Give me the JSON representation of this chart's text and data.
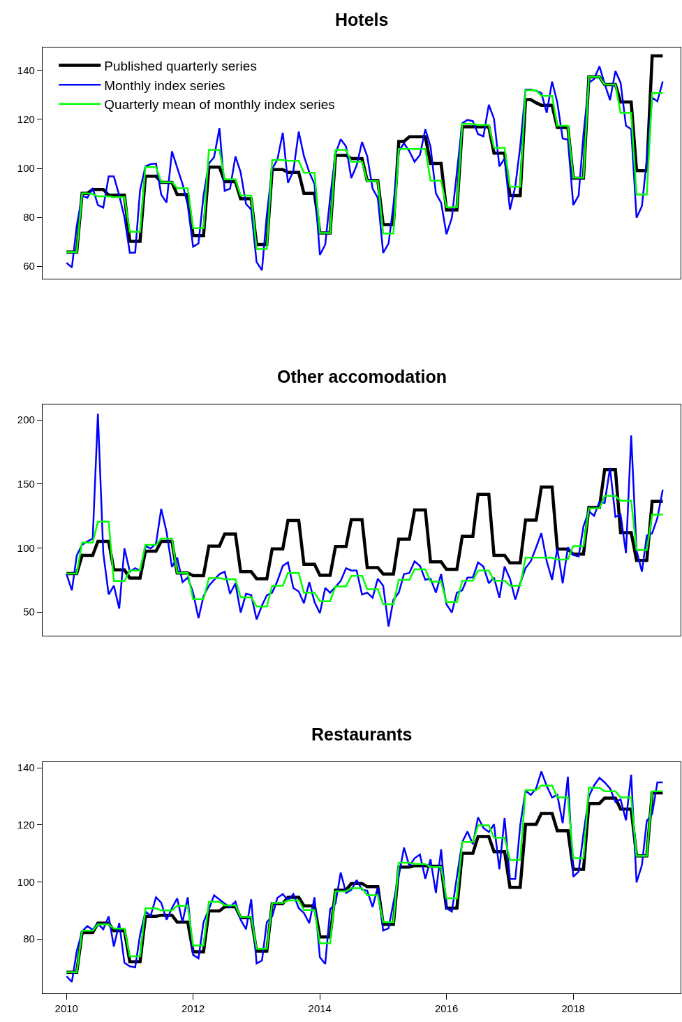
{
  "chart_data": [
    {
      "type": "line",
      "title": "Hotels",
      "legend": "top left",
      "tick_labels": "y",
      "x": [
        "2010-01",
        "2010-02",
        "2010-03",
        "2010-04",
        "2010-05",
        "2010-06",
        "2010-07",
        "2010-08",
        "2010-09",
        "2010-10",
        "2010-11",
        "2010-12",
        "2011-01",
        "2011-02",
        "2011-03",
        "2011-04",
        "2011-05",
        "2011-06",
        "2011-07",
        "2011-08",
        "2011-09",
        "2011-10",
        "2011-11",
        "2011-12",
        "2012-01",
        "2012-02",
        "2012-03",
        "2012-04",
        "2012-05",
        "2012-06",
        "2012-07",
        "2012-08",
        "2012-09",
        "2012-10",
        "2012-11",
        "2012-12",
        "2013-01",
        "2013-02",
        "2013-03",
        "2013-04",
        "2013-05",
        "2013-06",
        "2013-07",
        "2013-08",
        "2013-09",
        "2013-10",
        "2013-11",
        "2013-12",
        "2014-01",
        "2014-02",
        "2014-03",
        "2014-04",
        "2014-05",
        "2014-06",
        "2014-07",
        "2014-08",
        "2014-09",
        "2014-10",
        "2014-11",
        "2014-12",
        "2015-01",
        "2015-02",
        "2015-03",
        "2015-04",
        "2015-05",
        "2015-06",
        "2015-07",
        "2015-08",
        "2015-09",
        "2015-10",
        "2015-11",
        "2015-12",
        "2016-01",
        "2016-02",
        "2016-03",
        "2016-04",
        "2016-05",
        "2016-06",
        "2016-07",
        "2016-08",
        "2016-09",
        "2016-10",
        "2016-11",
        "2016-12",
        "2017-01",
        "2017-02",
        "2017-03",
        "2017-04",
        "2017-05",
        "2017-06",
        "2017-07",
        "2017-08",
        "2017-09",
        "2017-10",
        "2017-11",
        "2017-12",
        "2018-01",
        "2018-02",
        "2018-03",
        "2018-04",
        "2018-05",
        "2018-06",
        "2018-07",
        "2018-08",
        "2018-09",
        "2018-10",
        "2018-11",
        "2018-12",
        "2019-01",
        "2019-02",
        "2019-03",
        "2019-04",
        "2019-05",
        "2019-06"
      ],
      "xlim": [
        "2009-08-16",
        "2019-09-12"
      ],
      "ylim": [
        54.9,
        149.4
      ],
      "yticks": [
        60,
        80,
        100,
        120,
        140
      ],
      "series": [
        {
          "name": "Published quarterly series",
          "color": "#000000",
          "values": [
            65.8,
            65.8,
            65.8,
            89.8,
            89.8,
            91.4,
            91.4,
            91.4,
            89,
            89,
            89,
            89,
            70.2,
            70.2,
            70.2,
            96.8,
            96.8,
            96.8,
            94.3,
            94.3,
            94.3,
            89.3,
            89.3,
            89.3,
            72.5,
            72.5,
            72.5,
            100.5,
            100.5,
            100.5,
            94.6,
            94.6,
            94.6,
            87.6,
            87.6,
            87.6,
            68.9,
            68.9,
            68.9,
            99.5,
            99.5,
            99.5,
            98.4,
            98.4,
            98.4,
            89.8,
            89.8,
            89.8,
            73.6,
            73.6,
            73.6,
            105.3,
            105.3,
            105.3,
            104,
            104,
            104,
            95,
            95,
            95,
            77,
            77,
            77,
            111,
            111,
            112.9,
            112.9,
            112.9,
            112.9,
            102,
            102,
            102,
            83,
            83,
            83,
            117,
            117,
            117,
            117,
            117,
            117,
            106.2,
            106.2,
            106.2,
            88.9,
            88.9,
            88.9,
            128.1,
            128.1,
            126.8,
            125.8,
            125.8,
            125.8,
            116.7,
            116.7,
            116.7,
            96,
            96,
            96,
            137.4,
            137.4,
            137.4,
            134.3,
            134.3,
            134.3,
            127.1,
            127.1,
            127.1,
            99.1,
            99.1,
            99.1,
            146,
            146,
            146
          ]
        },
        {
          "name": "Monthly index series",
          "color": "#0000ff",
          "values": [
            61.4,
            59.5,
            76.5,
            88.9,
            88,
            92,
            85,
            84,
            96.7,
            96.7,
            89,
            80,
            65.5,
            65.6,
            91,
            100.8,
            101.7,
            102,
            89.3,
            86,
            107,
            100.3,
            93.6,
            85,
            68,
            69.3,
            88.9,
            102,
            104.6,
            116.5,
            90.8,
            91.7,
            104.9,
            98.4,
            85.5,
            83.1,
            61.7,
            58.4,
            81,
            99.8,
            103.6,
            114.6,
            94.1,
            98.9,
            115,
            105,
            98.4,
            93.6,
            64.6,
            68.9,
            88,
            106,
            111.9,
            108.9,
            96,
            101.2,
            110.8,
            105,
            91.7,
            87.9,
            65.5,
            69.3,
            85,
            107,
            110.3,
            107,
            102.7,
            105.5,
            116,
            108.9,
            89.8,
            86,
            73.1,
            79.8,
            98.4,
            118.4,
            119.8,
            119.3,
            114,
            113.1,
            126,
            120.3,
            100.8,
            104,
            83.1,
            92.7,
            108.9,
            132.2,
            132.2,
            131.7,
            130.8,
            122.7,
            135.5,
            127,
            112.2,
            111.7,
            85,
            88.9,
            114,
            135,
            136.5,
            141.7,
            134.6,
            127.9,
            139.8,
            135,
            117.4,
            116,
            79.8,
            84.6,
            103.5,
            128.9,
            127.4,
            135.5
          ]
        },
        {
          "name": "Quarterly mean of monthly index series",
          "color": "#00ff00",
          "values": [
            65.8,
            65.8,
            65.8,
            89.8,
            89.8,
            89.5,
            88.6,
            88.6,
            88.6,
            88.2,
            88.2,
            88.2,
            74.1,
            74.1,
            74.1,
            100.5,
            100.5,
            100.5,
            94.4,
            94.4,
            94.4,
            91.9,
            91.9,
            91.9,
            75.5,
            75.5,
            75.5,
            107.6,
            107.6,
            107.6,
            95.5,
            95.5,
            95.5,
            88.9,
            88.9,
            88.9,
            67,
            67,
            67,
            103.4,
            103.4,
            103.4,
            103.1,
            103.1,
            103.1,
            98.2,
            98.2,
            98.2,
            73.6,
            73.6,
            73.6,
            107.6,
            107.6,
            107.6,
            102.7,
            102.7,
            102.7,
            94.8,
            94.8,
            94.8,
            73.4,
            73.4,
            73.4,
            107.9,
            107.9,
            107.9,
            107.9,
            107.9,
            107.9,
            95,
            95,
            95,
            84.1,
            84.1,
            84.1,
            118.2,
            118.2,
            118.2,
            117.7,
            117.7,
            117.7,
            108.4,
            108.4,
            108.4,
            92.5,
            92.5,
            92.5,
            131.9,
            131.9,
            131.9,
            129.6,
            129.6,
            129.6,
            117.4,
            117.4,
            117.4,
            96.2,
            96.2,
            96.2,
            137.4,
            137.4,
            137.4,
            134.3,
            134.3,
            134.3,
            122.7,
            122.7,
            122.7,
            89.3,
            89.3,
            89.3,
            130.8,
            130.8,
            130.8
          ]
        }
      ]
    },
    {
      "type": "line",
      "title": "Other accomodation",
      "tick_labels": "y",
      "x": [
        "2010-01",
        "2010-02",
        "2010-03",
        "2010-04",
        "2010-05",
        "2010-06",
        "2010-07",
        "2010-08",
        "2010-09",
        "2010-10",
        "2010-11",
        "2010-12",
        "2011-01",
        "2011-02",
        "2011-03",
        "2011-04",
        "2011-05",
        "2011-06",
        "2011-07",
        "2011-08",
        "2011-09",
        "2011-10",
        "2011-11",
        "2011-12",
        "2012-01",
        "2012-02",
        "2012-03",
        "2012-04",
        "2012-05",
        "2012-06",
        "2012-07",
        "2012-08",
        "2012-09",
        "2012-10",
        "2012-11",
        "2012-12",
        "2013-01",
        "2013-02",
        "2013-03",
        "2013-04",
        "2013-05",
        "2013-06",
        "2013-07",
        "2013-08",
        "2013-09",
        "2013-10",
        "2013-11",
        "2013-12",
        "2014-01",
        "2014-02",
        "2014-03",
        "2014-04",
        "2014-05",
        "2014-06",
        "2014-07",
        "2014-08",
        "2014-09",
        "2014-10",
        "2014-11",
        "2014-12",
        "2015-01",
        "2015-02",
        "2015-03",
        "2015-04",
        "2015-05",
        "2015-06",
        "2015-07",
        "2015-08",
        "2015-09",
        "2015-10",
        "2015-11",
        "2015-12",
        "2016-01",
        "2016-02",
        "2016-03",
        "2016-04",
        "2016-05",
        "2016-06",
        "2016-07",
        "2016-08",
        "2016-09",
        "2016-10",
        "2016-11",
        "2016-12",
        "2017-01",
        "2017-02",
        "2017-03",
        "2017-04",
        "2017-05",
        "2017-06",
        "2017-07",
        "2017-08",
        "2017-09",
        "2017-10",
        "2017-11",
        "2017-12",
        "2018-01",
        "2018-02",
        "2018-03",
        "2018-04",
        "2018-05",
        "2018-06",
        "2018-07",
        "2018-08",
        "2018-09",
        "2018-10",
        "2018-11",
        "2018-12",
        "2019-01",
        "2019-02",
        "2019-03",
        "2019-04",
        "2019-05",
        "2019-06"
      ],
      "xlim": [
        "2009-08-16",
        "2019-09-12"
      ],
      "ylim": [
        31.5,
        212
      ],
      "yticks": [
        50,
        100,
        150,
        200
      ],
      "series": [
        {
          "color": "#000000",
          "values": [
            80,
            80,
            80,
            94.2,
            94.2,
            94.2,
            105.1,
            105.1,
            105.1,
            82.9,
            82.9,
            82.9,
            76.5,
            76.5,
            76.5,
            97.5,
            97.5,
            97.5,
            105.1,
            105.1,
            105.1,
            80.5,
            80.5,
            80.5,
            78.4,
            78.4,
            78.4,
            101.5,
            101.5,
            101.5,
            110.9,
            110.9,
            110.9,
            81.5,
            81.5,
            81.5,
            76,
            76,
            76,
            99.3,
            99.3,
            99.3,
            121.5,
            121.5,
            121.5,
            87.3,
            87.3,
            87.3,
            78.7,
            78.7,
            78.7,
            101.1,
            101.1,
            101.1,
            122,
            122,
            122,
            84.7,
            84.7,
            84.7,
            79.6,
            79.6,
            79.6,
            106.9,
            106.9,
            106.9,
            129.6,
            129.6,
            129.6,
            89.1,
            89.1,
            89.1,
            83.3,
            83.3,
            83.3,
            109.1,
            109.1,
            109.1,
            141.8,
            141.8,
            141.8,
            94.2,
            94.2,
            94.2,
            88.4,
            88.4,
            88.4,
            121.8,
            121.8,
            121.8,
            147.5,
            147.5,
            147.5,
            99.1,
            99.1,
            99.1,
            95.1,
            95.1,
            95.1,
            131.5,
            131.5,
            131.5,
            161.1,
            161.1,
            161.1,
            112,
            112,
            112,
            90.2,
            90.2,
            90.2,
            136.4,
            136.4,
            136.4
          ]
        },
        {
          "color": "#0000ff",
          "values": [
            79.6,
            66.9,
            94.2,
            102.4,
            105.1,
            107.3,
            204.7,
            96,
            63.6,
            70.5,
            52.7,
            99.6,
            81.5,
            84.2,
            82.4,
            101.5,
            99.6,
            103.3,
            130.5,
            112.4,
            85.1,
            92.4,
            73.3,
            76.9,
            65.1,
            45.1,
            62.4,
            70.5,
            75.1,
            79.6,
            81.5,
            64.2,
            72.4,
            49.6,
            64.2,
            63.3,
            44.2,
            55.1,
            63,
            65.1,
            74.2,
            86,
            88.7,
            68.7,
            66,
            56.9,
            73.3,
            57.8,
            49.1,
            68.7,
            65.1,
            69.6,
            74.2,
            84.2,
            82.4,
            82.4,
            63.6,
            65.1,
            61.1,
            76,
            70.5,
            38.7,
            59.6,
            65.1,
            79.6,
            80.5,
            89.6,
            86,
            75.1,
            76,
            65.1,
            79.6,
            56,
            49.6,
            65.1,
            66.9,
            76.9,
            76.9,
            88.7,
            85.5,
            72.4,
            76.9,
            61.1,
            85.5,
            76,
            59.6,
            72.4,
            84.2,
            89.6,
            100.5,
            111.5,
            89.6,
            75.1,
            99.6,
            72.4,
            100.5,
            94.5,
            93.3,
            116.9,
            128.7,
            125.1,
            136,
            135.1,
            162.4,
            124.2,
            126,
            96,
            187.8,
            97.8,
            81.5,
            109.6,
            111.5,
            123.3,
            145.5
          ]
        },
        {
          "color": "#00ff00",
          "values": [
            80,
            80,
            80,
            104.2,
            104.2,
            104.2,
            120.5,
            120.5,
            120.5,
            74.2,
            74.2,
            74.2,
            82.4,
            82.4,
            82.4,
            102.4,
            102.4,
            102.4,
            107.3,
            107.3,
            107.3,
            80.5,
            80.5,
            80.5,
            60,
            60,
            60,
            76.5,
            76.5,
            76.5,
            75.6,
            75.6,
            75.6,
            61.5,
            61.5,
            61.5,
            54.2,
            54.2,
            54.2,
            70.5,
            70.5,
            70.5,
            80.5,
            80.5,
            80.5,
            65.1,
            65.1,
            65.1,
            58.4,
            58.4,
            58.4,
            70,
            70,
            70,
            78.2,
            78.2,
            78.2,
            67.8,
            67.8,
            67.8,
            56,
            56,
            56,
            75.1,
            75.1,
            75.1,
            83.3,
            83.3,
            83.3,
            73.8,
            73.8,
            73.8,
            57.8,
            57.8,
            57.8,
            74.5,
            74.5,
            74.5,
            82.4,
            82.4,
            82.4,
            74.5,
            74.5,
            74.5,
            70.5,
            70.5,
            70.5,
            92.4,
            92.4,
            92.4,
            92.4,
            92.4,
            92.4,
            90.9,
            90.9,
            90.9,
            101.5,
            101.5,
            101.5,
            130.9,
            130.9,
            130.9,
            140.5,
            140.5,
            140.5,
            136.9,
            136.9,
            136.9,
            98.4,
            98.4,
            98.4,
            126,
            126,
            126
          ]
        }
      ]
    },
    {
      "type": "line",
      "title": "Restaurants",
      "x": [
        "2010-01",
        "2010-02",
        "2010-03",
        "2010-04",
        "2010-05",
        "2010-06",
        "2010-07",
        "2010-08",
        "2010-09",
        "2010-10",
        "2010-11",
        "2010-12",
        "2011-01",
        "2011-02",
        "2011-03",
        "2011-04",
        "2011-05",
        "2011-06",
        "2011-07",
        "2011-08",
        "2011-09",
        "2011-10",
        "2011-11",
        "2011-12",
        "2012-01",
        "2012-02",
        "2012-03",
        "2012-04",
        "2012-05",
        "2012-06",
        "2012-07",
        "2012-08",
        "2012-09",
        "2012-10",
        "2012-11",
        "2012-12",
        "2013-01",
        "2013-02",
        "2013-03",
        "2013-04",
        "2013-05",
        "2013-06",
        "2013-07",
        "2013-08",
        "2013-09",
        "2013-10",
        "2013-11",
        "2013-12",
        "2014-01",
        "2014-02",
        "2014-03",
        "2014-04",
        "2014-05",
        "2014-06",
        "2014-07",
        "2014-08",
        "2014-09",
        "2014-10",
        "2014-11",
        "2014-12",
        "2015-01",
        "2015-02",
        "2015-03",
        "2015-04",
        "2015-05",
        "2015-06",
        "2015-07",
        "2015-08",
        "2015-09",
        "2015-10",
        "2015-11",
        "2015-12",
        "2016-01",
        "2016-02",
        "2016-03",
        "2016-04",
        "2016-05",
        "2016-06",
        "2016-07",
        "2016-08",
        "2016-09",
        "2016-10",
        "2016-11",
        "2016-12",
        "2017-01",
        "2017-02",
        "2017-03",
        "2017-04",
        "2017-05",
        "2017-06",
        "2017-07",
        "2017-08",
        "2017-09",
        "2017-10",
        "2017-11",
        "2017-12",
        "2018-01",
        "2018-02",
        "2018-03",
        "2018-04",
        "2018-05",
        "2018-06",
        "2018-07",
        "2018-08",
        "2018-09",
        "2018-10",
        "2018-11",
        "2018-12",
        "2019-01",
        "2019-02",
        "2019-03",
        "2019-04",
        "2019-05",
        "2019-06"
      ],
      "xlim": [
        "2009-08-16",
        "2019-09-12"
      ],
      "xticks": [
        "2010",
        "2012",
        "2014",
        "2016",
        "2018"
      ],
      "ylim": [
        60.9,
        142
      ],
      "yticks": [
        80,
        100,
        120,
        140
      ],
      "series": [
        {
          "color": "#000000",
          "values": [
            68.3,
            68.3,
            68.3,
            82.2,
            82.2,
            82.2,
            85.5,
            85.5,
            85.5,
            82.9,
            82.9,
            82.9,
            72,
            72,
            72,
            87.9,
            87.9,
            87.9,
            88.3,
            88.3,
            88.3,
            85.9,
            85.9,
            85.9,
            75.5,
            75.5,
            75.5,
            89.8,
            89.8,
            89.8,
            91.3,
            91.3,
            91.3,
            87.5,
            87.5,
            87.5,
            75.7,
            75.7,
            75.7,
            92.4,
            92.4,
            92.4,
            94.6,
            94.6,
            94.6,
            91.6,
            91.6,
            91.6,
            80.7,
            80.7,
            80.7,
            97.1,
            97.1,
            97.1,
            99.4,
            99.4,
            99.4,
            98.3,
            98.3,
            98.3,
            85.1,
            85.1,
            85.1,
            105.2,
            105.2,
            105.2,
            105.7,
            105.7,
            105.7,
            105.5,
            105.5,
            105.5,
            90.8,
            90.8,
            90.8,
            110,
            110,
            110,
            115.9,
            115.9,
            115.9,
            110.6,
            110.6,
            110.6,
            98.1,
            98.1,
            98.1,
            120.2,
            120.2,
            120.2,
            124,
            124,
            124,
            117.9,
            117.9,
            117.9,
            104.4,
            104.4,
            104.4,
            127.5,
            127.5,
            127.5,
            129.4,
            129.4,
            129.4,
            125.5,
            125.5,
            125.5,
            109.1,
            109.1,
            109.1,
            131.2,
            131.2,
            131.2
          ]
        },
        {
          "color": "#0000ff",
          "values": [
            66.9,
            64.9,
            75.7,
            82.6,
            84.5,
            83.2,
            85.3,
            83.4,
            87.9,
            77.3,
            85.6,
            71.6,
            70.4,
            70,
            81.4,
            89.6,
            88.1,
            94.6,
            92.7,
            86.7,
            90.8,
            94.2,
            85.9,
            94.6,
            74.4,
            73.2,
            85.9,
            90.4,
            95.3,
            93.8,
            92.4,
            91.2,
            93.1,
            86.7,
            83.4,
            93.9,
            71.4,
            72.4,
            85.9,
            87.9,
            94.4,
            95.7,
            93.6,
            95.7,
            90.8,
            89.1,
            85.5,
            94.6,
            73.6,
            71.2,
            90.4,
            92.4,
            103.3,
            96.1,
            97.2,
            100.6,
            97.3,
            96.9,
            91.2,
            98.1,
            82.9,
            83.7,
            92.7,
            102.2,
            112,
            105.5,
            108.3,
            109.6,
            101.1,
            107.9,
            96.1,
            111.4,
            90.8,
            89.6,
            101.8,
            114,
            117.7,
            113.2,
            122.6,
            118.9,
            117.5,
            120.2,
            104.4,
            122.4,
            101,
            101,
            119.8,
            132,
            130.5,
            132.8,
            138.7,
            133.6,
            129.6,
            130.5,
            120.6,
            136.9,
            101.8,
            103.6,
            116.9,
            130,
            133.8,
            136.5,
            134.9,
            132.8,
            128.1,
            128.9,
            121.6,
            137.6,
            99.8,
            105.9,
            121.4,
            123.8,
            134.9,
            134.9
          ]
        },
        {
          "color": "#00ff00",
          "values": [
            68.3,
            68.3,
            68.3,
            82.9,
            82.9,
            82.9,
            85.1,
            85.1,
            85.1,
            83.6,
            83.6,
            83.6,
            73.9,
            73.9,
            73.9,
            90.7,
            90.7,
            90.7,
            90,
            90,
            90,
            91.6,
            91.6,
            91.6,
            77.7,
            77.7,
            77.7,
            93,
            93,
            93,
            91.8,
            91.8,
            91.8,
            87.7,
            87.7,
            87.7,
            76.5,
            76.5,
            76.5,
            92.6,
            92.6,
            92.6,
            93.5,
            93.5,
            93.5,
            90.1,
            90.1,
            90.1,
            78.5,
            78.5,
            78.5,
            96.7,
            96.7,
            96.7,
            97.8,
            97.8,
            97.8,
            95.3,
            95.3,
            95.3,
            85.9,
            85.9,
            85.9,
            106.7,
            106.7,
            106.7,
            106.3,
            106.3,
            106.3,
            105.2,
            105.2,
            105.2,
            94.2,
            94.2,
            94.2,
            114,
            114,
            114,
            119.8,
            119.8,
            119.8,
            115.5,
            115.5,
            115.5,
            107.7,
            107.7,
            107.7,
            132.2,
            132.2,
            132.2,
            133.8,
            133.8,
            133.8,
            129.6,
            129.6,
            129.6,
            108.3,
            108.3,
            108.3,
            133,
            133,
            133,
            131.8,
            131.8,
            131.8,
            129.6,
            129.6,
            129.6,
            109.1,
            109.1,
            109.1,
            131.8,
            131.8,
            131.8
          ]
        }
      ]
    }
  ]
}
